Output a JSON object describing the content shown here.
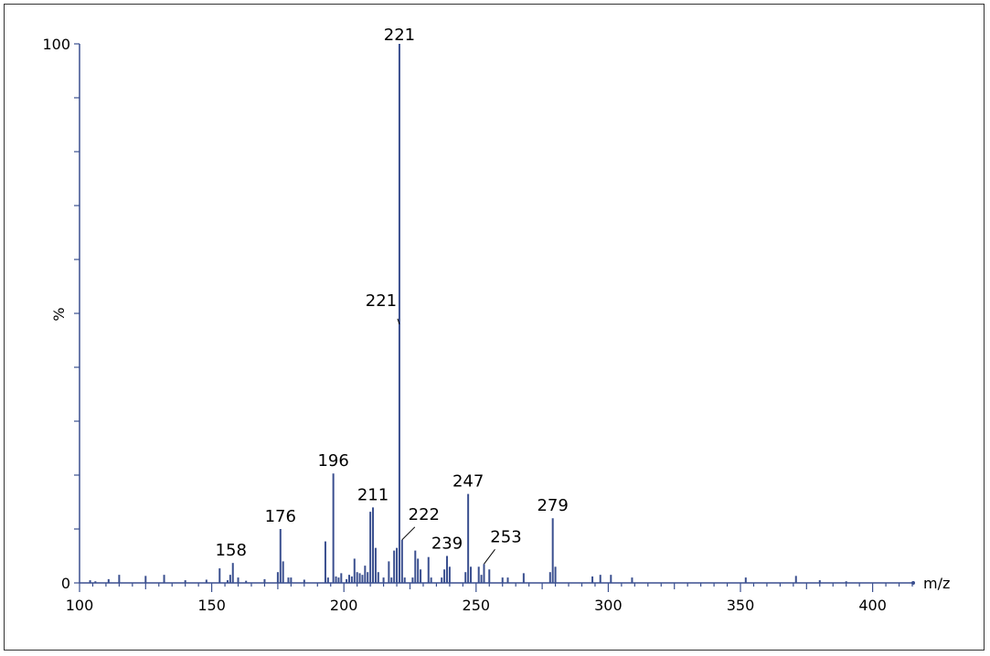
{
  "chart_data": {
    "type": "bar",
    "title": "",
    "xlabel": "m/z",
    "ylabel": "%",
    "xlim": [
      100,
      415
    ],
    "ylim": [
      0,
      100
    ],
    "x_ticks": [
      100,
      150,
      200,
      250,
      300,
      350,
      400
    ],
    "y_ticks": [
      0,
      100
    ],
    "colors": {
      "bars": "#3a4f8f",
      "axis": "#3a4f8f",
      "frame": "#333333"
    },
    "peaks": [
      {
        "mz": 104,
        "intensity": 0.5
      },
      {
        "mz": 106,
        "intensity": 0.3
      },
      {
        "mz": 111,
        "intensity": 0.7
      },
      {
        "mz": 115,
        "intensity": 1.5
      },
      {
        "mz": 125,
        "intensity": 1.3
      },
      {
        "mz": 132,
        "intensity": 1.5
      },
      {
        "mz": 140,
        "intensity": 0.5
      },
      {
        "mz": 148,
        "intensity": 0.6
      },
      {
        "mz": 153,
        "intensity": 2.7
      },
      {
        "mz": 156,
        "intensity": 0.5
      },
      {
        "mz": 157,
        "intensity": 1.5
      },
      {
        "mz": 158,
        "intensity": 3.7
      },
      {
        "mz": 160,
        "intensity": 1.0
      },
      {
        "mz": 163,
        "intensity": 0.4
      },
      {
        "mz": 170,
        "intensity": 0.7
      },
      {
        "mz": 175,
        "intensity": 2.0
      },
      {
        "mz": 176,
        "intensity": 10.0
      },
      {
        "mz": 177,
        "intensity": 4.0
      },
      {
        "mz": 179,
        "intensity": 1.0
      },
      {
        "mz": 180,
        "intensity": 1.0
      },
      {
        "mz": 185,
        "intensity": 0.6
      },
      {
        "mz": 193,
        "intensity": 7.7
      },
      {
        "mz": 194,
        "intensity": 1.0
      },
      {
        "mz": 196,
        "intensity": 20.3
      },
      {
        "mz": 197,
        "intensity": 1.2
      },
      {
        "mz": 198,
        "intensity": 1.0
      },
      {
        "mz": 199,
        "intensity": 1.8
      },
      {
        "mz": 201,
        "intensity": 0.7
      },
      {
        "mz": 202,
        "intensity": 1.5
      },
      {
        "mz": 203,
        "intensity": 1.2
      },
      {
        "mz": 204,
        "intensity": 4.5
      },
      {
        "mz": 205,
        "intensity": 2.0
      },
      {
        "mz": 206,
        "intensity": 1.8
      },
      {
        "mz": 207,
        "intensity": 1.5
      },
      {
        "mz": 208,
        "intensity": 3.2
      },
      {
        "mz": 209,
        "intensity": 2.0
      },
      {
        "mz": 210,
        "intensity": 13.2
      },
      {
        "mz": 211,
        "intensity": 14.0
      },
      {
        "mz": 212,
        "intensity": 6.5
      },
      {
        "mz": 213,
        "intensity": 2.0
      },
      {
        "mz": 215,
        "intensity": 1.0
      },
      {
        "mz": 217,
        "intensity": 4.0
      },
      {
        "mz": 218,
        "intensity": 1.0
      },
      {
        "mz": 219,
        "intensity": 6.0
      },
      {
        "mz": 220,
        "intensity": 6.5
      },
      {
        "mz": 221,
        "intensity": 100.0
      },
      {
        "mz": 222,
        "intensity": 8.0
      },
      {
        "mz": 223,
        "intensity": 1.0
      },
      {
        "mz": 226,
        "intensity": 1.0
      },
      {
        "mz": 227,
        "intensity": 6.0
      },
      {
        "mz": 228,
        "intensity": 4.5
      },
      {
        "mz": 229,
        "intensity": 2.5
      },
      {
        "mz": 232,
        "intensity": 4.8
      },
      {
        "mz": 233,
        "intensity": 1.0
      },
      {
        "mz": 237,
        "intensity": 1.0
      },
      {
        "mz": 238,
        "intensity": 2.5
      },
      {
        "mz": 239,
        "intensity": 5.0
      },
      {
        "mz": 240,
        "intensity": 3.0
      },
      {
        "mz": 246,
        "intensity": 2.0
      },
      {
        "mz": 247,
        "intensity": 16.5
      },
      {
        "mz": 248,
        "intensity": 3.0
      },
      {
        "mz": 251,
        "intensity": 3.0
      },
      {
        "mz": 252,
        "intensity": 1.5
      },
      {
        "mz": 253,
        "intensity": 3.5
      },
      {
        "mz": 255,
        "intensity": 2.5
      },
      {
        "mz": 260,
        "intensity": 1.0
      },
      {
        "mz": 262,
        "intensity": 1.0
      },
      {
        "mz": 268,
        "intensity": 1.8
      },
      {
        "mz": 278,
        "intensity": 2.0
      },
      {
        "mz": 279,
        "intensity": 12.0
      },
      {
        "mz": 280,
        "intensity": 3.0
      },
      {
        "mz": 294,
        "intensity": 1.2
      },
      {
        "mz": 297,
        "intensity": 1.5
      },
      {
        "mz": 301,
        "intensity": 1.5
      },
      {
        "mz": 309,
        "intensity": 1.0
      },
      {
        "mz": 352,
        "intensity": 1.0
      },
      {
        "mz": 371,
        "intensity": 1.3
      },
      {
        "mz": 380,
        "intensity": 0.5
      },
      {
        "mz": 390,
        "intensity": 0.3
      }
    ],
    "annotations": [
      {
        "text": "221",
        "mz": 221,
        "intensity": 100.0,
        "leader": false
      },
      {
        "text": "221",
        "mz": 221,
        "intensity": 48.0,
        "leader": true
      },
      {
        "text": "196",
        "mz": 196,
        "intensity": 20.3,
        "leader": false
      },
      {
        "text": "211",
        "mz": 211,
        "intensity": 14.0,
        "leader": false
      },
      {
        "text": "222",
        "mz": 222,
        "intensity": 8.0,
        "leader": true
      },
      {
        "text": "176",
        "mz": 176,
        "intensity": 10.0,
        "leader": false
      },
      {
        "text": "158",
        "mz": 158,
        "intensity": 3.7,
        "leader": false
      },
      {
        "text": "239",
        "mz": 239,
        "intensity": 5.0,
        "leader": false
      },
      {
        "text": "247",
        "mz": 247,
        "intensity": 16.5,
        "leader": false
      },
      {
        "text": "253",
        "mz": 253,
        "intensity": 3.5,
        "leader": true
      },
      {
        "text": "279",
        "mz": 279,
        "intensity": 12.0,
        "leader": false
      }
    ]
  }
}
